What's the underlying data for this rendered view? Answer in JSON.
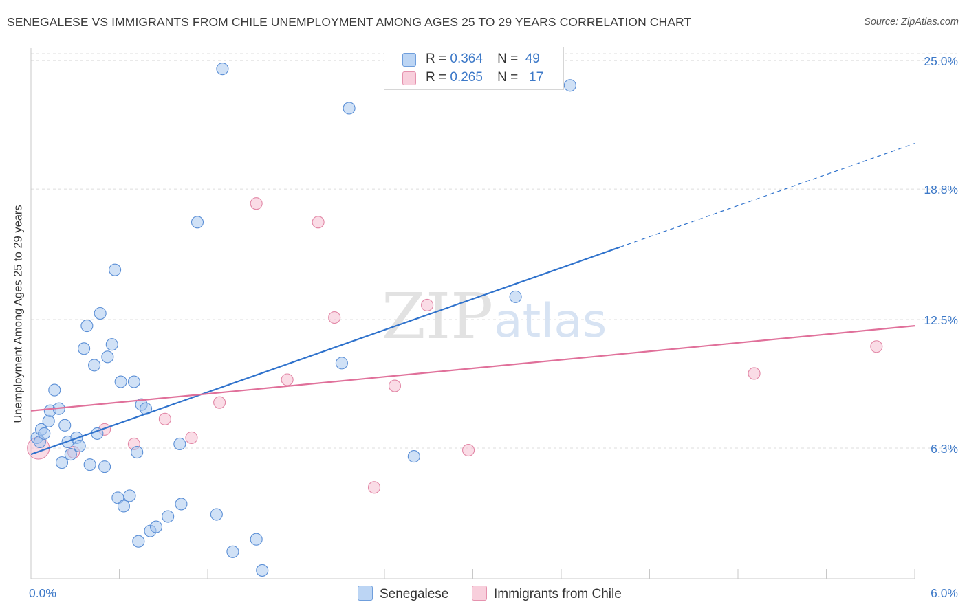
{
  "title": "SENEGALESE VS IMMIGRANTS FROM CHILE UNEMPLOYMENT AMONG AGES 25 TO 29 YEARS CORRELATION CHART",
  "source": "Source: ZipAtlas.com",
  "watermark": {
    "zip": "ZIP",
    "atlas": "atlas"
  },
  "legend": {
    "r_label": "R =",
    "n_label": "N =",
    "rows": [
      {
        "r": "0.364",
        "n": "49"
      },
      {
        "r": "0.265",
        "n": "17"
      }
    ]
  },
  "colors": {
    "blue_fill": "#a9c8ef",
    "blue_stroke": "#5b8fd6",
    "blue_line": "#2f72cc",
    "pink_fill": "#f6bfd1",
    "pink_stroke": "#e287a6",
    "pink_line": "#e0709a",
    "axis_label": "#3d79c8",
    "grid": "#dcdcdc"
  },
  "chart_data": {
    "type": "scatter",
    "title": "SENEGALESE VS IMMIGRANTS FROM CHILE UNEMPLOYMENT AMONG AGES 25 TO 29 YEARS CORRELATION CHART",
    "xlabel": "",
    "ylabel": "Unemployment Among Ages 25 to 29 years",
    "xlim": [
      0,
      6.0
    ],
    "ylim": [
      0,
      25.6
    ],
    "x_tick_labels": [
      "0.0%",
      "6.0%"
    ],
    "y_ticks": [
      6.3,
      12.5,
      18.8,
      25.0
    ],
    "y_tick_labels": [
      "6.3%",
      "12.5%",
      "18.8%",
      "25.0%"
    ],
    "series": [
      {
        "name": "Senegalese",
        "color": "blue",
        "r": 0.364,
        "n": 49,
        "points": [
          [
            0.04,
            6.8
          ],
          [
            0.06,
            6.6
          ],
          [
            0.07,
            7.2
          ],
          [
            0.09,
            7.0
          ],
          [
            0.12,
            7.6
          ],
          [
            0.13,
            8.1
          ],
          [
            0.16,
            9.1
          ],
          [
            0.19,
            8.2
          ],
          [
            0.21,
            5.6
          ],
          [
            0.23,
            7.4
          ],
          [
            0.25,
            6.6
          ],
          [
            0.27,
            6.0
          ],
          [
            0.31,
            6.8
          ],
          [
            0.33,
            6.4
          ],
          [
            0.36,
            11.1
          ],
          [
            0.38,
            12.2
          ],
          [
            0.4,
            5.5
          ],
          [
            0.43,
            10.3
          ],
          [
            0.45,
            7.0
          ],
          [
            0.47,
            12.8
          ],
          [
            0.5,
            5.4
          ],
          [
            0.52,
            10.7
          ],
          [
            0.55,
            11.3
          ],
          [
            0.57,
            14.9
          ],
          [
            0.59,
            3.9
          ],
          [
            0.61,
            9.5
          ],
          [
            0.63,
            3.5
          ],
          [
            0.67,
            4.0
          ],
          [
            0.7,
            9.5
          ],
          [
            0.72,
            6.1
          ],
          [
            0.73,
            1.8
          ],
          [
            0.75,
            8.4
          ],
          [
            0.78,
            8.2
          ],
          [
            0.81,
            2.3
          ],
          [
            0.85,
            2.5
          ],
          [
            0.93,
            3.0
          ],
          [
            1.01,
            6.5
          ],
          [
            1.02,
            3.6
          ],
          [
            1.13,
            17.2
          ],
          [
            1.26,
            3.1
          ],
          [
            1.3,
            24.6
          ],
          [
            1.37,
            1.3
          ],
          [
            1.53,
            1.9
          ],
          [
            1.57,
            0.4
          ],
          [
            2.11,
            10.4
          ],
          [
            2.16,
            22.7
          ],
          [
            2.6,
            5.9
          ],
          [
            3.29,
            13.6
          ],
          [
            3.66,
            23.8
          ]
        ],
        "trend": {
          "x_solid_end": 4.0,
          "x_dashed_end": 6.0,
          "y_at_0": 6.0,
          "y_at_4": 16.0,
          "y_at_6": 21.0
        }
      },
      {
        "name": "Immigrants from Chile",
        "color": "pink",
        "r": 0.265,
        "n": 17,
        "points": [
          [
            0.05,
            6.3
          ],
          [
            0.29,
            6.1
          ],
          [
            0.5,
            7.2
          ],
          [
            0.7,
            6.5
          ],
          [
            0.91,
            7.7
          ],
          [
            1.09,
            6.8
          ],
          [
            1.28,
            8.5
          ],
          [
            1.53,
            18.1
          ],
          [
            1.74,
            9.6
          ],
          [
            1.95,
            17.2
          ],
          [
            2.06,
            12.6
          ],
          [
            2.33,
            4.4
          ],
          [
            2.47,
            9.3
          ],
          [
            2.69,
            13.2
          ],
          [
            2.97,
            6.2
          ],
          [
            4.91,
            9.9
          ],
          [
            5.74,
            11.2
          ]
        ],
        "trend": {
          "x_start": 0.0,
          "x_end": 6.0,
          "y_at_0": 8.1,
          "y_at_6": 12.2
        }
      }
    ]
  },
  "bottom_legend": [
    {
      "label": "Senegalese"
    },
    {
      "label": "Immigrants from Chile"
    }
  ]
}
